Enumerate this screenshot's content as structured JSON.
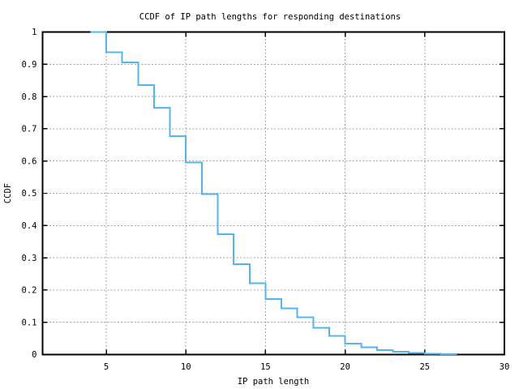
{
  "chart_data": {
    "type": "line",
    "subtype": "ccdf-step-post",
    "title": "CCDF of IP path lengths for responding destinations",
    "xlabel": "IP path length",
    "ylabel": "CCDF",
    "xlim": [
      1,
      30
    ],
    "ylim": [
      0,
      1
    ],
    "grid": true,
    "legend": "none",
    "x_ticks": [
      5,
      10,
      15,
      20,
      25,
      30
    ],
    "x_tick_labels": [
      "5",
      "10",
      "15",
      "20",
      "25",
      "30"
    ],
    "y_ticks": [
      0,
      0.1,
      0.2,
      0.3,
      0.4,
      0.5,
      0.6,
      0.7,
      0.8,
      0.9,
      1
    ],
    "y_tick_labels": [
      "0",
      "0.1",
      "0.2",
      "0.3",
      "0.4",
      "0.5",
      "0.6",
      "0.7",
      "0.8",
      "0.9",
      "1"
    ],
    "series": [
      {
        "name": "ccdf",
        "color": "#56b4e9",
        "points": [
          [
            4,
            1.0
          ],
          [
            5,
            0.937
          ],
          [
            6,
            0.906
          ],
          [
            7,
            0.835
          ],
          [
            8,
            0.765
          ],
          [
            9,
            0.677
          ],
          [
            10,
            0.595
          ],
          [
            11,
            0.498
          ],
          [
            12,
            0.373
          ],
          [
            13,
            0.28
          ],
          [
            14,
            0.221
          ],
          [
            15,
            0.172
          ],
          [
            16,
            0.143
          ],
          [
            17,
            0.115
          ],
          [
            18,
            0.083
          ],
          [
            19,
            0.058
          ],
          [
            20,
            0.034
          ],
          [
            21,
            0.022
          ],
          [
            22,
            0.014
          ],
          [
            23,
            0.009
          ],
          [
            24,
            0.005
          ],
          [
            25,
            0.003
          ],
          [
            26,
            0.001
          ],
          [
            27,
            0.0005
          ]
        ]
      }
    ],
    "colors": {
      "background": "#ffffff",
      "axis": "#000000",
      "grid": "#a0a0a0",
      "line": "#56b4e9"
    }
  }
}
